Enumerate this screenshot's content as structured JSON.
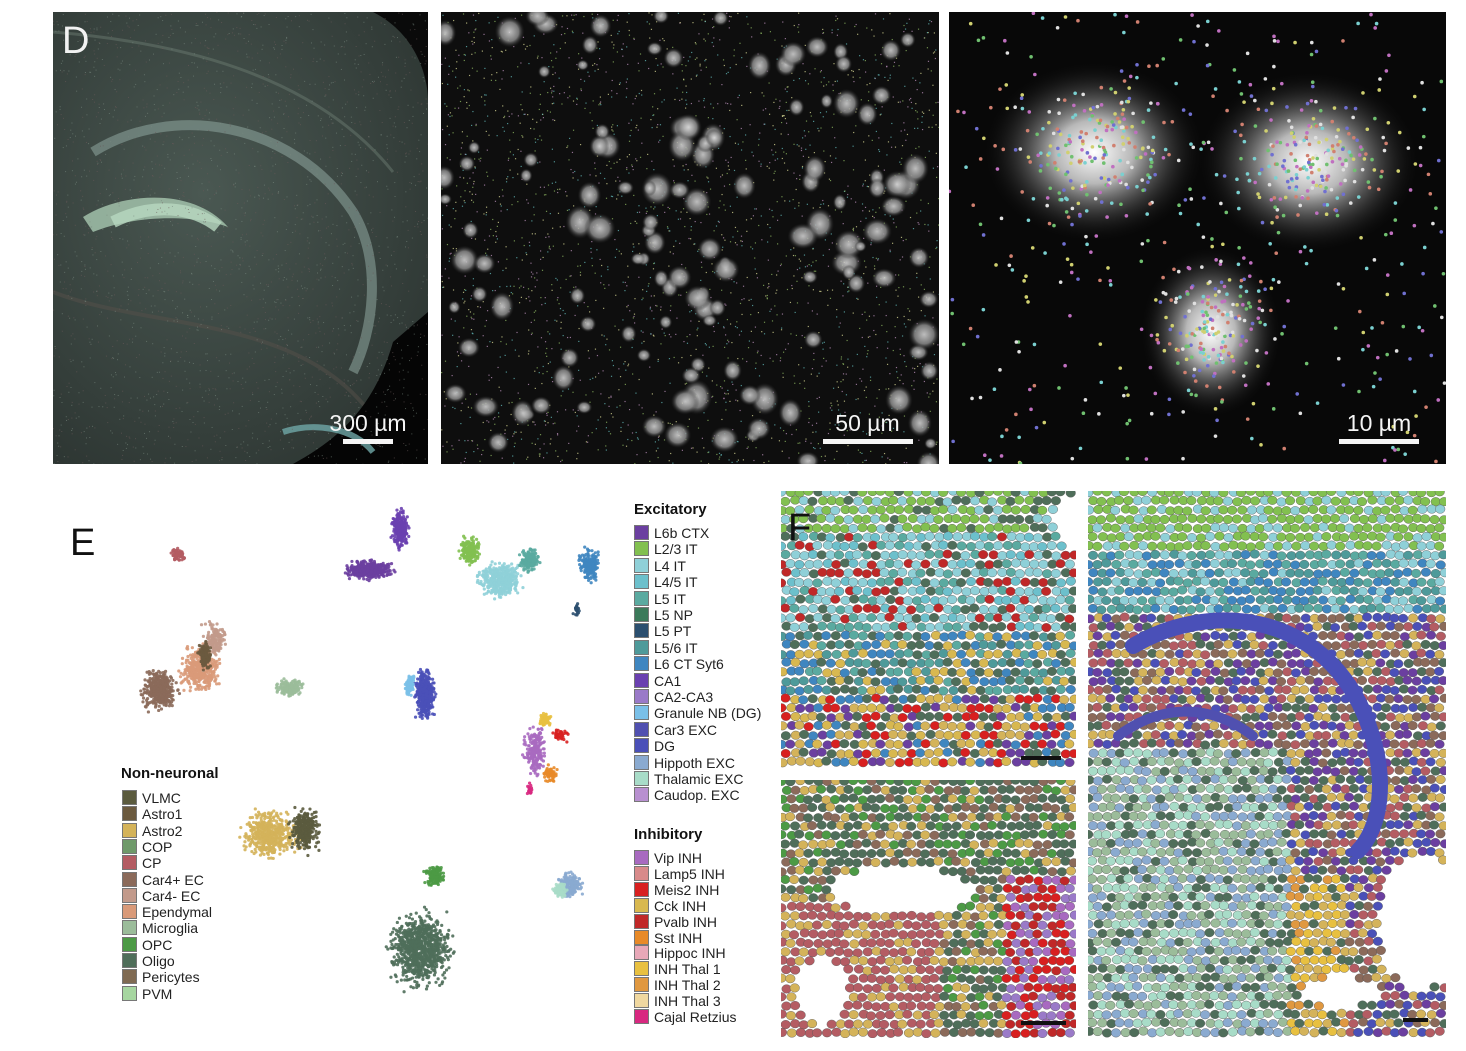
{
  "panels": {
    "d": {
      "letter": "D",
      "scalebars": [
        "300 µm",
        "50 µm",
        "10 µm"
      ]
    },
    "e": {
      "letter": "E"
    },
    "f": {
      "letter": "F"
    }
  },
  "legend_non_neuronal": {
    "title": "Non-neuronal",
    "items": [
      {
        "label": "VLMC",
        "color": "#5b5b3e"
      },
      {
        "label": "Astro1",
        "color": "#6b5a3f"
      },
      {
        "label": "Astro2",
        "color": "#d4b35a"
      },
      {
        "label": "COP",
        "color": "#6f9a6a"
      },
      {
        "label": "CP",
        "color": "#b45c63"
      },
      {
        "label": "Car4+ EC",
        "color": "#8b6a5a"
      },
      {
        "label": "Car4- EC",
        "color": "#c29a8b"
      },
      {
        "label": "Ependymal",
        "color": "#d99a79"
      },
      {
        "label": "Microglia",
        "color": "#9bbc9a"
      },
      {
        "label": "OPC",
        "color": "#4c9a45"
      },
      {
        "label": "Oligo",
        "color": "#4f6e5a"
      },
      {
        "label": "Pericytes",
        "color": "#7f6a52"
      },
      {
        "label": "PVM",
        "color": "#a6d6a0"
      }
    ]
  },
  "legend_excitatory": {
    "title": "Excitatory",
    "items": [
      {
        "label": "L6b CTX",
        "color": "#6b3fa0"
      },
      {
        "label": "L2/3 IT",
        "color": "#82c050"
      },
      {
        "label": "L4 IT",
        "color": "#8fd0d8"
      },
      {
        "label": "L4/5 IT",
        "color": "#6cc0cc"
      },
      {
        "label": "L5 IT",
        "color": "#5aaaa0"
      },
      {
        "label": "L5 NP",
        "color": "#3b7a5a"
      },
      {
        "label": "L5 PT",
        "color": "#2b4f6f"
      },
      {
        "label": "L5/6 IT",
        "color": "#4e9a9a"
      },
      {
        "label": "L6 CT Syt6",
        "color": "#3f86c0"
      },
      {
        "label": "CA1",
        "color": "#6a40b0"
      },
      {
        "label": "CA2-CA3",
        "color": "#9a7ac8"
      },
      {
        "label": "Granule NB (DG)",
        "color": "#7ac0e8"
      },
      {
        "label": "Car3 EXC",
        "color": "#5050b0"
      },
      {
        "label": "DG",
        "color": "#4a50b8"
      },
      {
        "label": "Hippoth EXC",
        "color": "#8aaad0"
      },
      {
        "label": "Thalamic EXC",
        "color": "#a8dcc8"
      },
      {
        "label": "Caudop. EXC",
        "color": "#b890d0"
      }
    ]
  },
  "legend_inhibitory": {
    "title": "Inhibitory",
    "items": [
      {
        "label": "Vip INH",
        "color": "#a86ac0"
      },
      {
        "label": "Lamp5 INH",
        "color": "#d88a8a"
      },
      {
        "label": "Meis2 INH",
        "color": "#d82020"
      },
      {
        "label": "Cck INH",
        "color": "#d8b850"
      },
      {
        "label": "Pvalb INH",
        "color": "#c02828"
      },
      {
        "label": "Sst INH",
        "color": "#e88a28"
      },
      {
        "label": "Hippoc INH",
        "color": "#e8a8b8"
      },
      {
        "label": "INH Thal 1",
        "color": "#e8c040"
      },
      {
        "label": "INH Thal 2",
        "color": "#e09840"
      },
      {
        "label": "INH Thal 3",
        "color": "#f0d8a0"
      },
      {
        "label": "Cajal Retzius",
        "color": "#d82880"
      }
    ]
  }
}
